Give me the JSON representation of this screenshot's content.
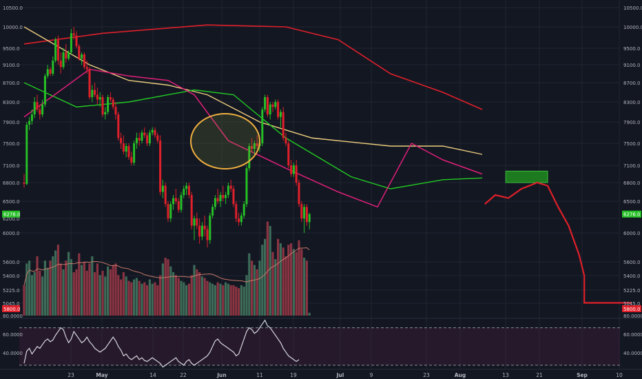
{
  "theme": {
    "background": "#131722",
    "grid": "#1f2433",
    "up_color": "#26c026",
    "down_color": "#e0202a",
    "axis_text": "#b2b5be",
    "vol_up": "#3d6b58",
    "vol_down": "#8a3442"
  },
  "chart_data": {
    "type": "candlestick",
    "price_axis": {
      "ticks": [
        "10500.0",
        "10000.0",
        "9500.0",
        "9100.0",
        "8700.0",
        "8300.0",
        "7900.0",
        "7500.0",
        "7100.0",
        "6800.0",
        "6500.0",
        "6200.0",
        "6000.0",
        "5600.0",
        "5400.0",
        "5225.0",
        "5045.0"
      ],
      "tick_values": [
        10500,
        10000,
        9500,
        9100,
        8700,
        8300,
        7900,
        7500,
        7100,
        6800,
        6500,
        6200,
        6000,
        5600,
        5400,
        5225,
        5045
      ],
      "right_labels": [
        "10500.0",
        "10000.0",
        "9500.0",
        "9100.0",
        "8700.0",
        "8300.0",
        "7900.0",
        "7500.0",
        "7100.0",
        "6800.0",
        "6500.0",
        "6000.0",
        "5600.0",
        "5400.0",
        "5225.0",
        "5045.0"
      ]
    },
    "price_marker": {
      "value": 6276,
      "label": "6276.0",
      "color": "#26c026"
    },
    "volume_marker": {
      "label": "5800.0",
      "color": "#e0202a"
    },
    "time_axis": {
      "labels": [
        "23",
        "May",
        "14",
        "22",
        "Jun",
        "11",
        "19",
        "Jul",
        "9",
        "23",
        "Aug",
        "13",
        "21",
        "Sep",
        "10"
      ]
    },
    "candles": [
      [
        6800,
        6950,
        6720,
        6780
      ],
      [
        6780,
        7900,
        6760,
        7850
      ],
      [
        7850,
        8000,
        7750,
        7920
      ],
      [
        7920,
        8150,
        7850,
        8050
      ],
      [
        8050,
        8400,
        7980,
        8300
      ],
      [
        8300,
        8450,
        8100,
        8150
      ],
      [
        8150,
        8250,
        7950,
        8050
      ],
      [
        8050,
        8350,
        8000,
        8250
      ],
      [
        8250,
        8900,
        8200,
        8850
      ],
      [
        8850,
        9100,
        8800,
        9000
      ],
      [
        9000,
        9050,
        8850,
        8900
      ],
      [
        8900,
        9300,
        8850,
        9200
      ],
      [
        9200,
        9750,
        9150,
        9700
      ],
      [
        9700,
        9800,
        9100,
        9200
      ],
      [
        9200,
        9400,
        8900,
        9050
      ],
      [
        9050,
        9500,
        9000,
        9400
      ],
      [
        9400,
        9600,
        9150,
        9250
      ],
      [
        9250,
        9450,
        9200,
        9400
      ],
      [
        9400,
        9950,
        9350,
        9850
      ],
      [
        9850,
        10000,
        9700,
        9800
      ],
      [
        9800,
        9900,
        9500,
        9550
      ],
      [
        9550,
        9600,
        9200,
        9250
      ],
      [
        9250,
        9400,
        9100,
        9350
      ],
      [
        9350,
        9400,
        9000,
        9050
      ],
      [
        9050,
        9200,
        8900,
        9000
      ],
      [
        9000,
        9050,
        8350,
        8400
      ],
      [
        8400,
        8650,
        8300,
        8550
      ],
      [
        8550,
        8700,
        8400,
        8450
      ],
      [
        8450,
        8600,
        8250,
        8350
      ],
      [
        8350,
        8500,
        8200,
        8400
      ],
      [
        8400,
        8450,
        8000,
        8050
      ],
      [
        8050,
        8200,
        7950,
        8100
      ],
      [
        8100,
        8450,
        8050,
        8400
      ],
      [
        8400,
        8500,
        8300,
        8350
      ],
      [
        8350,
        8400,
        8150,
        8200
      ],
      [
        8200,
        8300,
        7950,
        8050
      ],
      [
        8050,
        8100,
        7550,
        7600
      ],
      [
        7600,
        7700,
        7400,
        7500
      ],
      [
        7500,
        7650,
        7300,
        7350
      ],
      [
        7350,
        7500,
        7250,
        7450
      ],
      [
        7450,
        7500,
        7200,
        7250
      ],
      [
        7250,
        7350,
        7100,
        7150
      ],
      [
        7150,
        7550,
        7100,
        7500
      ],
      [
        7500,
        7700,
        7400,
        7600
      ],
      [
        7600,
        7700,
        7450,
        7550
      ],
      [
        7550,
        7750,
        7500,
        7700
      ],
      [
        7700,
        7800,
        7600,
        7650
      ],
      [
        7650,
        7700,
        7450,
        7500
      ],
      [
        7500,
        7750,
        7450,
        7700
      ],
      [
        7700,
        7800,
        7650,
        7750
      ],
      [
        7750,
        7800,
        7600,
        7650
      ],
      [
        7650,
        7700,
        7500,
        7550
      ],
      [
        7550,
        7650,
        6600,
        6650
      ],
      [
        6650,
        6850,
        6550,
        6750
      ],
      [
        6750,
        6800,
        6400,
        6450
      ],
      [
        6450,
        6500,
        6150,
        6200
      ],
      [
        6200,
        6500,
        6150,
        6450
      ],
      [
        6450,
        6600,
        6350,
        6550
      ],
      [
        6550,
        6700,
        6450,
        6500
      ],
      [
        6500,
        6550,
        6300,
        6350
      ],
      [
        6350,
        6650,
        6300,
        6600
      ],
      [
        6600,
        6750,
        6550,
        6700
      ],
      [
        6700,
        6800,
        6600,
        6750
      ],
      [
        6750,
        6800,
        6550,
        6600
      ],
      [
        6600,
        6650,
        6050,
        6100
      ],
      [
        6100,
        6250,
        5900,
        6200
      ],
      [
        6200,
        6300,
        6050,
        6100
      ],
      [
        6100,
        6200,
        5850,
        5950
      ],
      [
        5950,
        6150,
        5900,
        6100
      ],
      [
        6100,
        6250,
        5950,
        6050
      ],
      [
        6050,
        6100,
        5800,
        5900
      ],
      [
        5900,
        6300,
        5850,
        6250
      ],
      [
        6250,
        6450,
        6200,
        6400
      ],
      [
        6400,
        6600,
        6350,
        6550
      ],
      [
        6550,
        6700,
        6450,
        6500
      ],
      [
        6500,
        6650,
        6400,
        6600
      ],
      [
        6600,
        6750,
        6500,
        6550
      ],
      [
        6550,
        6650,
        6450,
        6600
      ],
      [
        6600,
        6800,
        6550,
        6750
      ],
      [
        6750,
        6850,
        6650,
        6700
      ],
      [
        6700,
        6750,
        6400,
        6450
      ],
      [
        6450,
        6500,
        6150,
        6200
      ],
      [
        6200,
        6300,
        6100,
        6150
      ],
      [
        6150,
        6300,
        6100,
        6250
      ],
      [
        6250,
        6500,
        6200,
        6450
      ],
      [
        6450,
        7100,
        6400,
        7050
      ],
      [
        7050,
        7500,
        7000,
        7450
      ],
      [
        7450,
        7600,
        7350,
        7400
      ],
      [
        7400,
        7550,
        7300,
        7500
      ],
      [
        7500,
        7650,
        7400,
        7450
      ],
      [
        7450,
        7550,
        7350,
        7500
      ],
      [
        7500,
        8200,
        7450,
        8150
      ],
      [
        8150,
        8450,
        8100,
        8400
      ],
      [
        8400,
        8450,
        8000,
        8050
      ],
      [
        8050,
        8300,
        7950,
        8250
      ],
      [
        8250,
        8300,
        8100,
        8200
      ],
      [
        8200,
        8350,
        8150,
        8300
      ],
      [
        8300,
        8350,
        7950,
        8000
      ],
      [
        8000,
        8150,
        7800,
        8100
      ],
      [
        8100,
        8200,
        7550,
        7600
      ],
      [
        7600,
        7700,
        7450,
        7500
      ],
      [
        7500,
        7550,
        7050,
        7100
      ],
      [
        7100,
        7200,
        6900,
        6950
      ],
      [
        6950,
        7150,
        6900,
        7100
      ],
      [
        7100,
        7200,
        6750,
        6800
      ],
      [
        6800,
        6850,
        6400,
        6450
      ],
      [
        6450,
        6500,
        6150,
        6200
      ],
      [
        6200,
        6450,
        6000,
        6400
      ],
      [
        6400,
        6450,
        6100,
        6150
      ],
      [
        6150,
        6300,
        6050,
        6276
      ]
    ],
    "volumes": [
      420,
      720,
      760,
      560,
      600,
      820,
      620,
      540,
      760,
      660,
      760,
      820,
      900,
      980,
      720,
      640,
      760,
      880,
      780,
      600,
      640,
      860,
      700,
      740,
      620,
      720,
      820,
      600,
      720,
      560,
      620,
      540,
      680,
      640,
      700,
      720,
      560,
      500,
      600,
      540,
      480,
      460,
      500,
      520,
      480,
      440,
      460,
      420,
      500,
      440,
      460,
      420,
      560,
      720,
      800,
      780,
      680,
      600,
      560,
      520,
      480,
      460,
      420,
      440,
      560,
      700,
      640,
      600,
      540,
      520,
      480,
      460,
      440,
      420,
      460,
      440,
      420,
      460,
      440,
      420,
      420,
      400,
      380,
      420,
      400,
      560,
      860,
      760,
      700,
      640,
      760,
      980,
      1060,
      1300,
      1240,
      880,
      780,
      1060,
      1000,
      940,
      820,
      980,
      1000,
      920,
      880,
      1040,
      920,
      800,
      760,
      40
    ],
    "ma_yellow": [
      [
        0,
        10000
      ],
      [
        25,
        9100
      ],
      [
        40,
        8750
      ],
      [
        55,
        8650
      ],
      [
        70,
        8450
      ],
      [
        90,
        7900
      ],
      [
        110,
        7600
      ],
      [
        140,
        7450
      ],
      [
        160,
        7450
      ],
      [
        175,
        7300
      ]
    ],
    "ma_red": [
      [
        0,
        9600
      ],
      [
        30,
        9850
      ],
      [
        70,
        10050
      ],
      [
        100,
        10000
      ],
      [
        120,
        9700
      ],
      [
        140,
        8900
      ],
      [
        160,
        8500
      ],
      [
        175,
        8150
      ]
    ],
    "ma_green": [
      [
        0,
        8700
      ],
      [
        20,
        8200
      ],
      [
        40,
        8300
      ],
      [
        65,
        8550
      ],
      [
        80,
        8450
      ],
      [
        100,
        7600
      ],
      [
        125,
        6900
      ],
      [
        140,
        6700
      ],
      [
        160,
        6850
      ],
      [
        175,
        6880
      ]
    ],
    "ma_pink": [
      [
        0,
        8000
      ],
      [
        25,
        9000
      ],
      [
        40,
        8850
      ],
      [
        55,
        8750
      ],
      [
        65,
        8450
      ],
      [
        78,
        7550
      ],
      [
        100,
        7050
      ],
      [
        120,
        6650
      ],
      [
        135,
        6400
      ],
      [
        148,
        7500
      ],
      [
        160,
        7200
      ],
      [
        175,
        6950
      ]
    ],
    "green_box": {
      "x0": 184,
      "x1": 200,
      "y0": 6800,
      "y1": 7000
    },
    "projection": [
      [
        176,
        6450
      ],
      [
        180,
        6600
      ],
      [
        185,
        6550
      ],
      [
        190,
        6700
      ],
      [
        196,
        6800
      ],
      [
        200,
        6750
      ],
      [
        204,
        6400
      ],
      [
        208,
        6100
      ],
      [
        212,
        5700
      ],
      [
        214,
        5400
      ],
      [
        214,
        5050
      ],
      [
        232,
        5050
      ]
    ],
    "rsi": {
      "levels": [
        "80.0000",
        "60.0000",
        "40.0000"
      ],
      "level_values": [
        80,
        60,
        40
      ],
      "values": [
        32,
        45,
        48,
        42,
        46,
        50,
        48,
        52,
        56,
        58,
        55,
        57,
        62,
        66,
        70,
        68,
        60,
        54,
        58,
        66,
        62,
        58,
        54,
        56,
        60,
        55,
        52,
        48,
        46,
        44,
        46,
        48,
        52,
        56,
        60,
        56,
        50,
        46,
        40,
        42,
        38,
        36,
        38,
        40,
        36,
        38,
        35,
        34,
        36,
        38,
        36,
        34,
        32,
        28,
        30,
        32,
        34,
        36,
        38,
        34,
        32,
        30,
        34,
        36,
        32,
        30,
        32,
        34,
        36,
        38,
        40,
        44,
        50,
        56,
        58,
        54,
        52,
        50,
        48,
        46,
        44,
        40,
        42,
        50,
        58,
        66,
        70,
        68,
        64,
        66,
        70,
        74,
        78,
        72,
        70,
        66,
        62,
        58,
        54,
        48,
        44,
        40,
        38,
        36,
        34,
        36
      ]
    }
  }
}
